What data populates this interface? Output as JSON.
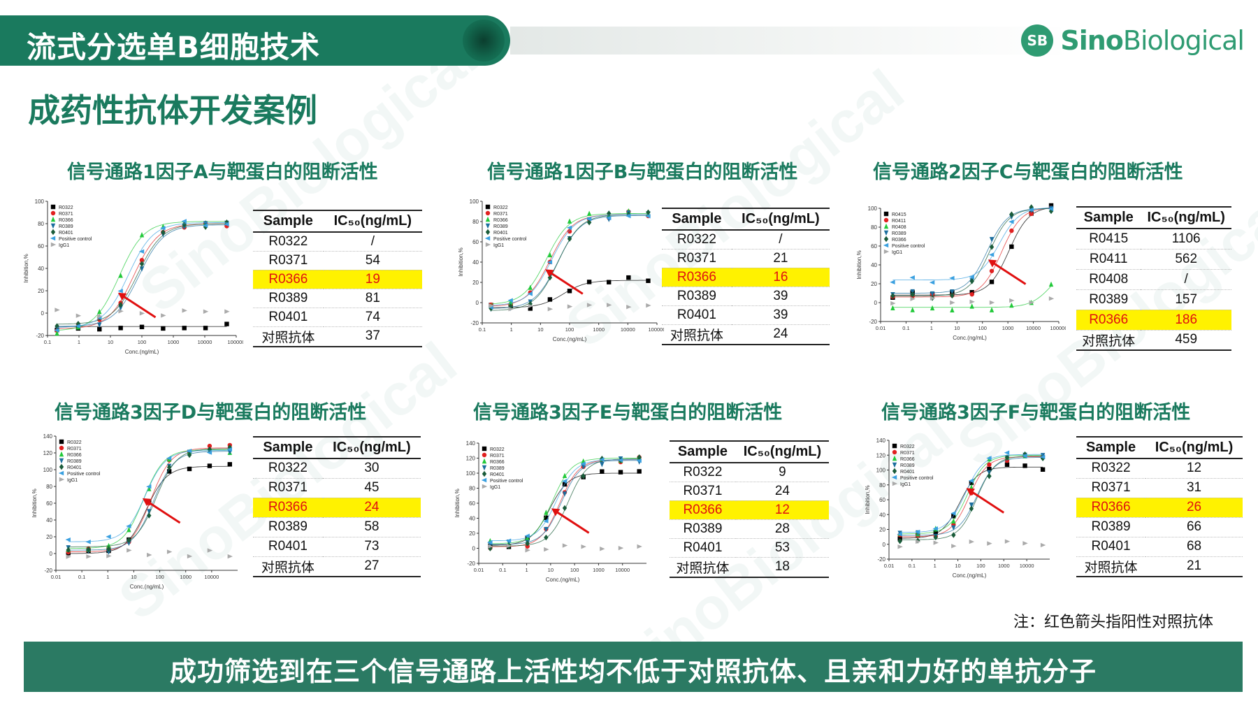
{
  "header": {
    "title": "流式分选单B细胞技术"
  },
  "logo": {
    "mark": "SB",
    "brand_a": "Sino",
    "brand_b": "Biological"
  },
  "page_title": "成药性抗体开发案例",
  "watermark": "SinoBiological",
  "colors": {
    "brand": "#1a7a5e",
    "highlight_bg": "#fff200",
    "highlight_text": "#e01010",
    "arrow": "#e01010"
  },
  "table_header": {
    "sample": "Sample",
    "ic50": "IC₅₀(ng/mL)"
  },
  "panels": [
    {
      "title": "信号通路1因子A与靶蛋白的阻断活性",
      "rows": [
        {
          "sample": "R0322",
          "ic50": "/"
        },
        {
          "sample": "R0371",
          "ic50": "54"
        },
        {
          "sample": "R0366",
          "ic50": "19",
          "highlight": true
        },
        {
          "sample": "R0389",
          "ic50": "81"
        },
        {
          "sample": "R0401",
          "ic50": "74"
        },
        {
          "sample": "对照抗体",
          "ic50": "37"
        }
      ]
    },
    {
      "title": "信号通路1因子B与靶蛋白的阻断活性",
      "rows": [
        {
          "sample": "R0322",
          "ic50": "/"
        },
        {
          "sample": "R0371",
          "ic50": "21"
        },
        {
          "sample": "R0366",
          "ic50": "16",
          "highlight": true
        },
        {
          "sample": "R0389",
          "ic50": "39"
        },
        {
          "sample": "R0401",
          "ic50": "39"
        },
        {
          "sample": "对照抗体",
          "ic50": "24"
        }
      ]
    },
    {
      "title": "信号通路2因子C与靶蛋白的阻断活性",
      "rows": [
        {
          "sample": "R0415",
          "ic50": "1106"
        },
        {
          "sample": "R0411",
          "ic50": "562"
        },
        {
          "sample": "R0408",
          "ic50": "/"
        },
        {
          "sample": "R0389",
          "ic50": "157"
        },
        {
          "sample": "R0366",
          "ic50": "186",
          "highlight": true
        },
        {
          "sample": "对照抗体",
          "ic50": "459"
        }
      ]
    },
    {
      "title": "信号通路3因子D与靶蛋白的阻断活性",
      "rows": [
        {
          "sample": "R0322",
          "ic50": "30"
        },
        {
          "sample": "R0371",
          "ic50": "45"
        },
        {
          "sample": "R0366",
          "ic50": "24",
          "highlight": true
        },
        {
          "sample": "R0389",
          "ic50": "58"
        },
        {
          "sample": "R0401",
          "ic50": "73"
        },
        {
          "sample": "对照抗体",
          "ic50": "27"
        }
      ]
    },
    {
      "title": "信号通路3因子E与靶蛋白的阻断活性",
      "rows": [
        {
          "sample": "R0322",
          "ic50": "9"
        },
        {
          "sample": "R0371",
          "ic50": "24"
        },
        {
          "sample": "R0366",
          "ic50": "12",
          "highlight": true
        },
        {
          "sample": "R0389",
          "ic50": "28"
        },
        {
          "sample": "R0401",
          "ic50": "53"
        },
        {
          "sample": "对照抗体",
          "ic50": "18"
        }
      ]
    },
    {
      "title": "信号通路3因子F与靶蛋白的阻断活性",
      "rows": [
        {
          "sample": "R0322",
          "ic50": "12"
        },
        {
          "sample": "R0371",
          "ic50": "31"
        },
        {
          "sample": "R0366",
          "ic50": "26",
          "highlight": true
        },
        {
          "sample": "R0389",
          "ic50": "66"
        },
        {
          "sample": "R0401",
          "ic50": "68"
        },
        {
          "sample": "对照抗体",
          "ic50": "21"
        }
      ]
    }
  ],
  "chart_data": [
    {
      "type": "scatter",
      "xlabel": "Conc.(ng/mL)",
      "ylabel": "Inhibition,%",
      "x_scale": "log",
      "xlim": [
        0.1,
        100000
      ],
      "ylim": [
        -20,
        100
      ],
      "x_ticks": [
        "0.1",
        "1",
        "10",
        "100",
        "1000",
        "10000",
        "100000"
      ],
      "y_ticks": [
        "-20",
        "0",
        "20",
        "40",
        "60",
        "80",
        "100"
      ],
      "legend_position": "top-left",
      "series": [
        {
          "name": "R0322",
          "color": "#000000",
          "marker": "square",
          "ic50": null,
          "bottom": -12,
          "top": 7,
          "flat": true
        },
        {
          "name": "R0371",
          "color": "#e02020",
          "marker": "circle",
          "ic50": 54,
          "bottom": -14,
          "top": 80
        },
        {
          "name": "R0366",
          "color": "#22c93a",
          "marker": "triangle",
          "ic50": 19,
          "bottom": -16,
          "top": 82
        },
        {
          "name": "R0389",
          "color": "#1b6e9e",
          "marker": "triangle-down",
          "ic50": 81,
          "bottom": -12,
          "top": 79
        },
        {
          "name": "R0401",
          "color": "#1a5c3a",
          "marker": "diamond",
          "ic50": 74,
          "bottom": -10,
          "top": 80
        },
        {
          "name": "Positive control",
          "color": "#3aa0e0",
          "marker": "triangle-left",
          "ic50": 37,
          "bottom": -13,
          "top": 81
        },
        {
          "name": "IgG1",
          "color": "#aaaaaa",
          "marker": "triangle-right",
          "ic50": null,
          "bottom": 0,
          "top": 0,
          "flat": true
        }
      ],
      "arrow_at": 19
    },
    {
      "type": "scatter",
      "xlabel": "Conc.(ng/mL)",
      "ylabel": "Inhibition,%",
      "x_scale": "log",
      "xlim": [
        0.1,
        100000
      ],
      "ylim": [
        -20,
        100
      ],
      "x_ticks": [
        "0.1",
        "1",
        "10",
        "100",
        "1000",
        "10000",
        "100000"
      ],
      "y_ticks": [
        "-20",
        "0",
        "20",
        "40",
        "60",
        "80",
        "100"
      ],
      "legend_position": "top-left",
      "series": [
        {
          "name": "R0322",
          "color": "#000000",
          "marker": "square",
          "ic50": 60,
          "bottom": -5,
          "top": 22
        },
        {
          "name": "R0371",
          "color": "#e02020",
          "marker": "circle",
          "ic50": 21,
          "bottom": -4,
          "top": 87
        },
        {
          "name": "R0366",
          "color": "#22c93a",
          "marker": "triangle",
          "ic50": 16,
          "bottom": -2,
          "top": 88
        },
        {
          "name": "R0389",
          "color": "#1b6e9e",
          "marker": "triangle-down",
          "ic50": 39,
          "bottom": -6,
          "top": 86
        },
        {
          "name": "R0401",
          "color": "#1a5c3a",
          "marker": "diamond",
          "ic50": 39,
          "bottom": -8,
          "top": 87
        },
        {
          "name": "Positive control",
          "color": "#3aa0e0",
          "marker": "triangle-left",
          "ic50": 24,
          "bottom": -3,
          "top": 87
        },
        {
          "name": "IgG1",
          "color": "#aaaaaa",
          "marker": "triangle-right",
          "ic50": null,
          "bottom": -5,
          "top": -5,
          "flat": true
        }
      ],
      "arrow_at": 16
    },
    {
      "type": "scatter",
      "xlabel": "Conc.(ng/mL)",
      "ylabel": "Inhibition,%",
      "x_scale": "log",
      "xlim": [
        0.01,
        100000
      ],
      "ylim": [
        -20,
        100
      ],
      "x_ticks": [
        "0.01",
        "0.1",
        "1",
        "10",
        "100",
        "1000",
        "10000",
        "100000"
      ],
      "y_ticks": [
        "-20",
        "0",
        "20",
        "40",
        "60",
        "80",
        "100"
      ],
      "legend_position": "top-left",
      "series": [
        {
          "name": "R0415",
          "color": "#000000",
          "marker": "square",
          "ic50": 1106,
          "bottom": 8,
          "top": 102
        },
        {
          "name": "R0411",
          "color": "#e02020",
          "marker": "circle",
          "ic50": 562,
          "bottom": 6,
          "top": 101
        },
        {
          "name": "R0408",
          "color": "#22c93a",
          "marker": "triangle",
          "ic50": 50000,
          "bottom": -5,
          "top": 40
        },
        {
          "name": "R0389",
          "color": "#1b6e9e",
          "marker": "triangle-down",
          "ic50": 157,
          "bottom": 10,
          "top": 100
        },
        {
          "name": "R0366",
          "color": "#1a5c3a",
          "marker": "diamond",
          "ic50": 186,
          "bottom": 7,
          "top": 100
        },
        {
          "name": "Positive control",
          "color": "#3aa0e0",
          "marker": "triangle-left",
          "ic50": 459,
          "bottom": 24,
          "top": 101
        },
        {
          "name": "IgG1",
          "color": "#aaaaaa",
          "marker": "triangle-right",
          "ic50": null,
          "bottom": 2,
          "top": 2,
          "flat": true
        }
      ],
      "arrow_at": 186
    },
    {
      "type": "scatter",
      "xlabel": "Conc.(ng/mL)",
      "ylabel": "Inhibition,%",
      "x_scale": "log",
      "xlim": [
        0.01,
        100000
      ],
      "ylim": [
        -20,
        140
      ],
      "x_ticks": [
        "0.01",
        "0.1",
        "1",
        "10",
        "100",
        "1000",
        "10000"
      ],
      "y_ticks": [
        "-20",
        "0",
        "20",
        "40",
        "60",
        "80",
        "100",
        "120",
        "140"
      ],
      "legend_position": "top-left",
      "series": [
        {
          "name": "R0322",
          "color": "#000000",
          "marker": "square",
          "ic50": 30,
          "bottom": 0,
          "top": 104
        },
        {
          "name": "R0371",
          "color": "#e02020",
          "marker": "circle",
          "ic50": 45,
          "bottom": 2,
          "top": 126
        },
        {
          "name": "R0366",
          "color": "#22c93a",
          "marker": "triangle",
          "ic50": 24,
          "bottom": 6,
          "top": 124
        },
        {
          "name": "R0389",
          "color": "#1b6e9e",
          "marker": "triangle-down",
          "ic50": 58,
          "bottom": 4,
          "top": 122
        },
        {
          "name": "R0401",
          "color": "#1a5c3a",
          "marker": "diamond",
          "ic50": 73,
          "bottom": 8,
          "top": 125
        },
        {
          "name": "Positive control",
          "color": "#3aa0e0",
          "marker": "triangle-left",
          "ic50": 27,
          "bottom": 14,
          "top": 123
        },
        {
          "name": "IgG1",
          "color": "#aaaaaa",
          "marker": "triangle-right",
          "ic50": null,
          "bottom": 0,
          "top": 0,
          "flat": true
        }
      ],
      "arrow_at": 24
    },
    {
      "type": "scatter",
      "xlabel": "Conc.(ng/mL)",
      "ylabel": "Inhibition,%",
      "x_scale": "log",
      "xlim": [
        0.01,
        100000
      ],
      "ylim": [
        -20,
        140
      ],
      "x_ticks": [
        "0.01",
        "0.1",
        "1",
        "10",
        "100",
        "1000",
        "10000"
      ],
      "y_ticks": [
        "-20",
        "0",
        "20",
        "40",
        "60",
        "80",
        "100",
        "120",
        "140"
      ],
      "legend_position": "top-left",
      "series": [
        {
          "name": "R0322",
          "color": "#000000",
          "marker": "square",
          "ic50": 9,
          "bottom": 4,
          "top": 100
        },
        {
          "name": "R0371",
          "color": "#e02020",
          "marker": "circle",
          "ic50": 24,
          "bottom": 2,
          "top": 118
        },
        {
          "name": "R0366",
          "color": "#22c93a",
          "marker": "triangle",
          "ic50": 12,
          "bottom": 6,
          "top": 120
        },
        {
          "name": "R0389",
          "color": "#1b6e9e",
          "marker": "triangle-down",
          "ic50": 28,
          "bottom": 5,
          "top": 117
        },
        {
          "name": "R0401",
          "color": "#1a5c3a",
          "marker": "diamond",
          "ic50": 53,
          "bottom": 3,
          "top": 119
        },
        {
          "name": "Positive control",
          "color": "#3aa0e0",
          "marker": "triangle-left",
          "ic50": 18,
          "bottom": 10,
          "top": 118
        },
        {
          "name": "IgG1",
          "color": "#aaaaaa",
          "marker": "triangle-right",
          "ic50": null,
          "bottom": 0,
          "top": 0,
          "flat": true
        }
      ],
      "arrow_at": 12
    },
    {
      "type": "scatter",
      "xlabel": "Conc.(ng/mL)",
      "ylabel": "Inhibition,%",
      "x_scale": "log",
      "xlim": [
        0.01,
        100000
      ],
      "ylim": [
        -20,
        140
      ],
      "x_ticks": [
        "0.01",
        "0.1",
        "1",
        "10",
        "100",
        "1000",
        "10000"
      ],
      "y_ticks": [
        "-20",
        "0",
        "20",
        "40",
        "60",
        "80",
        "100",
        "120",
        "140"
      ],
      "legend_position": "top-left",
      "series": [
        {
          "name": "R0322",
          "color": "#000000",
          "marker": "square",
          "ic50": 12,
          "bottom": 8,
          "top": 104
        },
        {
          "name": "R0371",
          "color": "#e02020",
          "marker": "circle",
          "ic50": 31,
          "bottom": 10,
          "top": 118
        },
        {
          "name": "R0366",
          "color": "#22c93a",
          "marker": "triangle",
          "ic50": 26,
          "bottom": 14,
          "top": 120
        },
        {
          "name": "R0389",
          "color": "#1b6e9e",
          "marker": "triangle-down",
          "ic50": 66,
          "bottom": 12,
          "top": 117
        },
        {
          "name": "R0401",
          "color": "#1a5c3a",
          "marker": "diamond",
          "ic50": 68,
          "bottom": 6,
          "top": 119
        },
        {
          "name": "Positive control",
          "color": "#3aa0e0",
          "marker": "triangle-left",
          "ic50": 21,
          "bottom": 16,
          "top": 121
        },
        {
          "name": "IgG1",
          "color": "#aaaaaa",
          "marker": "triangle-right",
          "ic50": null,
          "bottom": 0,
          "top": 0,
          "flat": true
        }
      ],
      "arrow_at": 26
    }
  ],
  "note": "注：红色箭头指阳性对照抗体",
  "footer": "成功筛选到在三个信号通路上活性均不低于对照抗体、且亲和力好的单抗分子"
}
